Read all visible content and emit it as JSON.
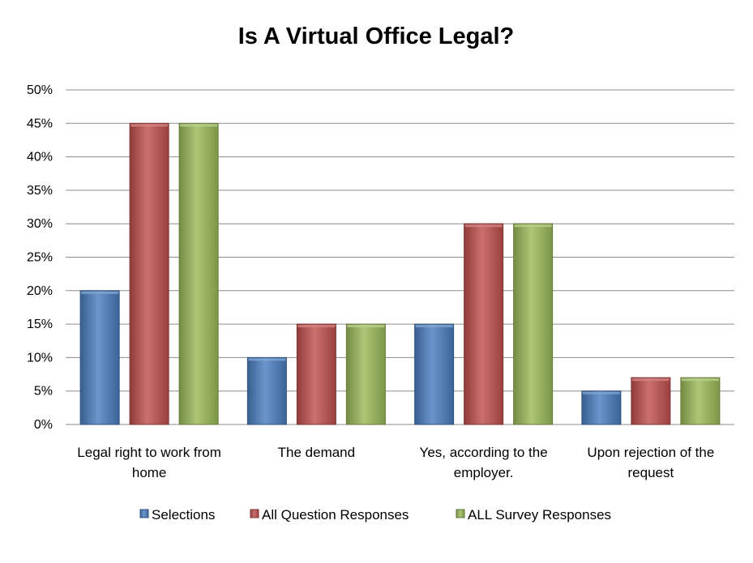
{
  "chart_data": {
    "type": "bar",
    "title": "Is A Virtual Office Legal?",
    "xlabel": "",
    "ylabel": "",
    "ylim": [
      0,
      50
    ],
    "y_ticks": [
      "0%",
      "5%",
      "10%",
      "15%",
      "20%",
      "25%",
      "30%",
      "35%",
      "40%",
      "45%",
      "50%"
    ],
    "y_tick_values": [
      0,
      5,
      10,
      15,
      20,
      25,
      30,
      35,
      40,
      45,
      50
    ],
    "grid": true,
    "legend_position": "bottom",
    "categories": [
      [
        "Legal right to work from",
        "home"
      ],
      [
        "The demand"
      ],
      [
        "Yes, according to the",
        "employer."
      ],
      [
        "Upon rejection of the",
        "request"
      ]
    ],
    "series": [
      {
        "name": "Selections",
        "color": "#4a7ebf",
        "values": [
          20,
          10,
          15,
          5
        ]
      },
      {
        "name": "All Question Responses",
        "color": "#c0504d",
        "values": [
          45,
          15,
          30,
          7
        ]
      },
      {
        "name": "ALL Survey Responses",
        "color": "#9bbb59",
        "values": [
          45,
          15,
          30,
          7
        ]
      }
    ]
  }
}
